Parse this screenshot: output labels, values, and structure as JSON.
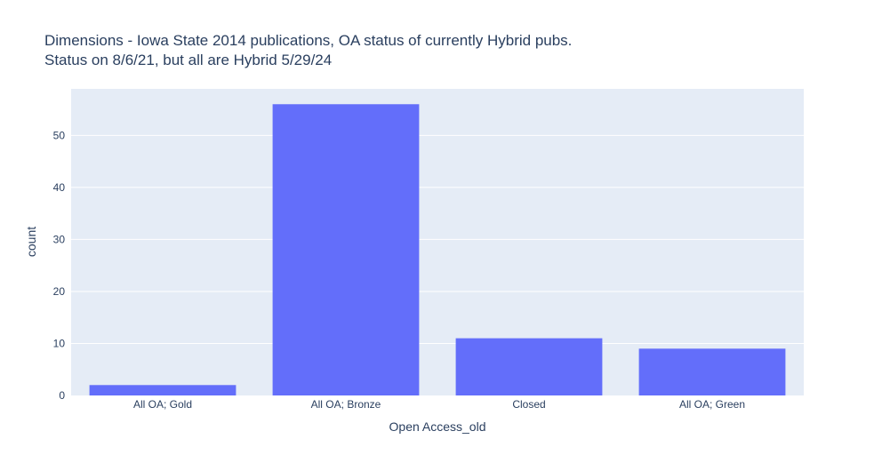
{
  "chart_data": {
    "type": "bar",
    "title_lines": [
      "Dimensions - Iowa State 2014 publications, OA status of currently Hybrid pubs.",
      "Status on 8/6/21, but all are Hybrid 5/29/24"
    ],
    "categories": [
      "All OA; Gold",
      "All OA; Bronze",
      "Closed",
      "All OA; Green"
    ],
    "values": [
      2,
      56,
      11,
      9
    ],
    "xlabel": "Open Access_old",
    "ylabel": "count",
    "ylim": [
      0,
      58.95
    ],
    "yticks": [
      0,
      10,
      20,
      30,
      40,
      50
    ],
    "grid": true,
    "legend": "none",
    "colors": {
      "bar": "#636efa",
      "plot_bg": "#e5ecf6",
      "grid": "#ffffff",
      "text": "#2a3f5f"
    }
  }
}
